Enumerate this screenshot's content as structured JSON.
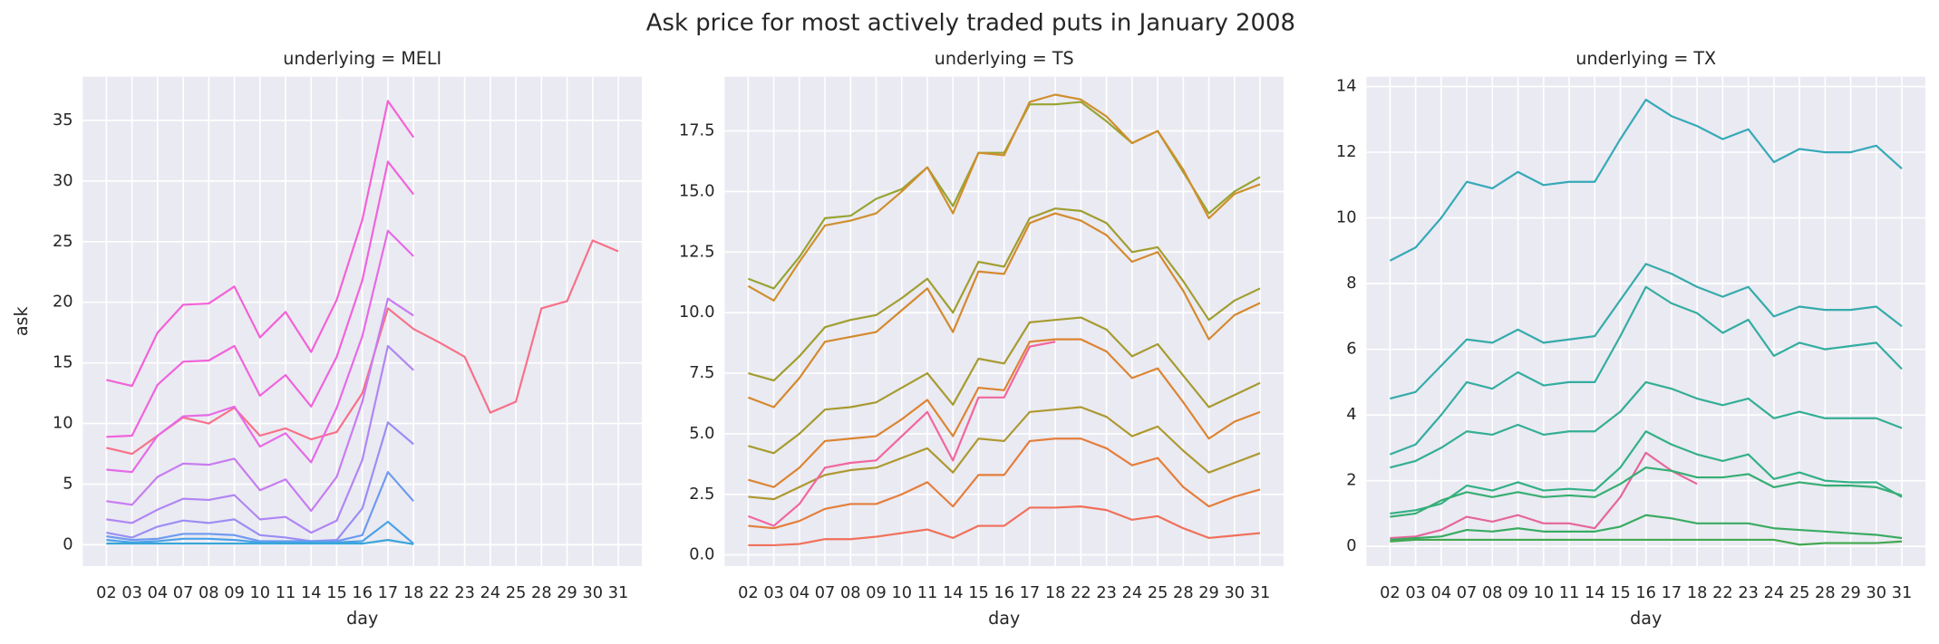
{
  "title": "Ask price for most actively traded puts in January 2008",
  "chart_data": [
    {
      "type": "line",
      "title": "underlying = MELI",
      "xlabel": "day",
      "ylabel": "ask",
      "categories": [
        "02",
        "03",
        "04",
        "07",
        "08",
        "09",
        "10",
        "11",
        "14",
        "15",
        "16",
        "17",
        "18",
        "22",
        "23",
        "24",
        "25",
        "28",
        "29",
        "30",
        "31"
      ],
      "ylim": [
        -1.75,
        38.6
      ],
      "yticks": [
        0,
        5,
        10,
        15,
        20,
        25,
        30,
        35
      ],
      "grid": true,
      "series": [
        {
          "color": "#f77189",
          "values": [
            8.0,
            7.5,
            9.0,
            10.5,
            10.0,
            11.3,
            9.0,
            9.6,
            8.7,
            9.3,
            12.5,
            19.5,
            17.8,
            16.7,
            15.5,
            10.9,
            11.8,
            19.5,
            20.1,
            25.1,
            24.2
          ]
        },
        {
          "color": "#f461d6",
          "values": [
            13.6,
            13.1,
            17.5,
            19.8,
            19.9,
            21.3,
            17.1,
            19.2,
            15.9,
            20.2,
            26.8,
            36.6,
            33.6,
            null,
            null,
            null,
            null,
            null,
            null,
            null,
            null
          ]
        },
        {
          "color": "#f063dc",
          "values": [
            8.9,
            9.0,
            13.2,
            15.1,
            15.2,
            16.4,
            12.3,
            14.0,
            11.4,
            15.5,
            21.8,
            31.6,
            28.9,
            null,
            null,
            null,
            null,
            null,
            null,
            null,
            null
          ]
        },
        {
          "color": "#e66ae6",
          "values": [
            6.2,
            6.0,
            9.0,
            10.6,
            10.7,
            11.4,
            8.1,
            9.2,
            6.8,
            11.3,
            17.2,
            25.9,
            23.8,
            null,
            null,
            null,
            null,
            null,
            null,
            null,
            null
          ]
        },
        {
          "color": "#c77cf0",
          "values": [
            3.6,
            3.3,
            5.6,
            6.7,
            6.6,
            7.1,
            4.5,
            5.4,
            2.8,
            5.6,
            11.8,
            20.3,
            18.9,
            null,
            null,
            null,
            null,
            null,
            null,
            null,
            null
          ]
        },
        {
          "color": "#b086f3",
          "values": [
            2.1,
            1.8,
            2.9,
            3.8,
            3.7,
            4.1,
            2.1,
            2.3,
            1.0,
            2.0,
            7.0,
            16.4,
            14.4,
            null,
            null,
            null,
            null,
            null,
            null,
            null,
            null
          ]
        },
        {
          "color": "#9a8ef4",
          "values": [
            1.0,
            0.6,
            1.5,
            2.0,
            1.8,
            2.1,
            0.8,
            0.6,
            0.3,
            0.4,
            3.0,
            10.1,
            8.3,
            null,
            null,
            null,
            null,
            null,
            null,
            null,
            null
          ]
        },
        {
          "color": "#6e9af0",
          "values": [
            0.7,
            0.4,
            0.5,
            0.9,
            0.9,
            0.8,
            0.3,
            0.3,
            0.3,
            0.3,
            0.8,
            6.0,
            3.6,
            null,
            null,
            null,
            null,
            null,
            null,
            null,
            null
          ]
        },
        {
          "color": "#4aa1e8",
          "values": [
            0.4,
            0.2,
            0.3,
            0.5,
            0.5,
            0.4,
            0.2,
            0.2,
            0.2,
            0.2,
            0.3,
            1.9,
            0.1,
            null,
            null,
            null,
            null,
            null,
            null,
            null,
            null
          ]
        },
        {
          "color": "#3aa4d8",
          "values": [
            0.1,
            0.1,
            0.1,
            0.1,
            0.1,
            0.1,
            0.1,
            0.1,
            0.1,
            0.1,
            0.1,
            0.4,
            0.05,
            null,
            null,
            null,
            null,
            null,
            null,
            null,
            null
          ]
        }
      ]
    },
    {
      "type": "line",
      "title": "underlying = TS",
      "xlabel": "day",
      "categories": [
        "02",
        "03",
        "04",
        "07",
        "08",
        "09",
        "10",
        "11",
        "14",
        "15",
        "16",
        "17",
        "18",
        "22",
        "23",
        "24",
        "25",
        "28",
        "29",
        "30",
        "31"
      ],
      "ylim": [
        -0.46,
        19.74
      ],
      "yticks": [
        {
          "value": 0,
          "label": "0.0"
        },
        2.5,
        {
          "value": 5,
          "label": "5.0"
        },
        7.5,
        {
          "value": 10,
          "label": "10.0"
        },
        12.5,
        {
          "value": 15,
          "label": "15.0"
        },
        17.5
      ],
      "grid": true,
      "series": [
        {
          "color": "#97a431",
          "values": [
            11.4,
            11.0,
            12.3,
            13.9,
            14.0,
            14.7,
            15.1,
            16.0,
            14.4,
            16.6,
            16.6,
            18.6,
            18.6,
            18.7,
            17.9,
            17.0,
            17.5,
            15.8,
            14.1,
            15.0,
            15.6
          ]
        },
        {
          "color": "#cf8f2e",
          "values": [
            11.1,
            10.5,
            12.1,
            13.6,
            13.8,
            14.1,
            15.0,
            16.0,
            14.1,
            16.6,
            16.5,
            18.7,
            19.0,
            18.8,
            18.1,
            17.0,
            17.5,
            15.9,
            13.9,
            14.9,
            15.3
          ]
        },
        {
          "color": "#a09e30",
          "values": [
            7.5,
            7.2,
            8.2,
            9.4,
            9.7,
            9.9,
            10.6,
            11.4,
            10.0,
            12.1,
            11.9,
            13.9,
            14.3,
            14.2,
            13.7,
            12.5,
            12.7,
            11.3,
            9.7,
            10.5,
            11.0
          ]
        },
        {
          "color": "#d4892f",
          "values": [
            6.5,
            6.1,
            7.3,
            8.8,
            9.0,
            9.2,
            10.1,
            11.0,
            9.2,
            11.7,
            11.6,
            13.7,
            14.1,
            13.8,
            13.2,
            12.1,
            12.5,
            10.9,
            8.9,
            9.9,
            10.4
          ]
        },
        {
          "color": "#a69b30",
          "values": [
            4.5,
            4.2,
            5.0,
            6.0,
            6.1,
            6.3,
            6.9,
            7.5,
            6.2,
            8.1,
            7.9,
            9.6,
            9.7,
            9.8,
            9.3,
            8.2,
            8.7,
            7.4,
            6.1,
            6.6,
            7.1
          ]
        },
        {
          "color": "#dc8432",
          "values": [
            3.1,
            2.8,
            3.6,
            4.7,
            4.8,
            4.9,
            5.6,
            6.4,
            4.9,
            6.9,
            6.8,
            8.8,
            8.9,
            8.9,
            8.4,
            7.3,
            7.7,
            6.3,
            4.8,
            5.5,
            5.9
          ]
        },
        {
          "color": "#ad9931",
          "values": [
            2.4,
            2.3,
            2.8,
            3.3,
            3.5,
            3.6,
            4.0,
            4.4,
            3.4,
            4.8,
            4.7,
            5.9,
            6.0,
            6.1,
            5.7,
            4.9,
            5.3,
            4.3,
            3.4,
            3.8,
            4.2
          ]
        },
        {
          "color": "#e47e3c",
          "values": [
            1.2,
            1.1,
            1.4,
            1.9,
            2.1,
            2.1,
            2.5,
            3.0,
            2.0,
            3.3,
            3.3,
            4.7,
            4.8,
            4.8,
            4.4,
            3.7,
            4.0,
            2.8,
            2.0,
            2.4,
            2.7
          ]
        },
        {
          "color": "#f0705a",
          "values": [
            0.4,
            0.4,
            0.45,
            0.65,
            0.65,
            0.75,
            0.9,
            1.05,
            0.7,
            1.2,
            1.2,
            1.95,
            1.95,
            2.0,
            1.85,
            1.45,
            1.6,
            1.1,
            0.7,
            0.8,
            0.9
          ]
        },
        {
          "color": "#f2669e",
          "values": [
            1.6,
            1.2,
            2.1,
            3.6,
            3.8,
            3.9,
            4.9,
            5.9,
            3.9,
            6.5,
            6.5,
            8.6,
            8.8,
            null,
            null,
            null,
            null,
            null,
            null,
            null,
            null
          ]
        }
      ]
    },
    {
      "type": "line",
      "title": "underlying = TX",
      "xlabel": "day",
      "categories": [
        "02",
        "03",
        "04",
        "07",
        "08",
        "09",
        "10",
        "11",
        "14",
        "15",
        "16",
        "17",
        "18",
        "22",
        "23",
        "24",
        "25",
        "28",
        "29",
        "30",
        "31"
      ],
      "ylim": [
        -0.6,
        14.3
      ],
      "yticks": [
        0,
        2,
        4,
        6,
        8,
        10,
        12,
        14
      ],
      "grid": true,
      "series": [
        {
          "color": "#36a9b8",
          "values": [
            8.7,
            9.1,
            10.0,
            11.1,
            10.9,
            11.4,
            11.0,
            11.1,
            11.1,
            12.4,
            13.6,
            13.1,
            12.8,
            12.4,
            12.7,
            11.7,
            12.1,
            12.0,
            12.0,
            12.2,
            11.5
          ]
        },
        {
          "color": "#35abab",
          "values": [
            4.5,
            4.7,
            5.5,
            6.3,
            6.2,
            6.6,
            6.2,
            6.3,
            6.4,
            7.5,
            8.6,
            8.3,
            7.9,
            7.6,
            7.9,
            7.0,
            7.3,
            7.2,
            7.2,
            7.3,
            6.7
          ]
        },
        {
          "color": "#34ada0",
          "values": [
            2.8,
            3.1,
            4.0,
            5.0,
            4.8,
            5.3,
            4.9,
            5.0,
            5.0,
            6.4,
            7.9,
            7.4,
            7.1,
            6.5,
            6.9,
            5.8,
            6.2,
            6.0,
            6.1,
            6.2,
            5.4
          ]
        },
        {
          "color": "#33ae94",
          "values": [
            2.4,
            2.6,
            3.0,
            3.5,
            3.4,
            3.7,
            3.4,
            3.5,
            3.5,
            4.1,
            5.0,
            4.8,
            4.5,
            4.3,
            4.5,
            3.9,
            4.1,
            3.9,
            3.9,
            3.9,
            3.6
          ]
        },
        {
          "color": "#32b086",
          "values": [
            1.0,
            1.1,
            1.3,
            1.85,
            1.7,
            1.95,
            1.7,
            1.75,
            1.7,
            2.4,
            3.5,
            3.1,
            2.8,
            2.6,
            2.8,
            2.05,
            2.25,
            2.0,
            1.95,
            1.95,
            1.5
          ]
        },
        {
          "color": "#e5669b",
          "values": [
            0.25,
            0.3,
            0.5,
            0.9,
            0.75,
            0.95,
            0.7,
            0.7,
            0.55,
            1.5,
            2.85,
            2.3,
            1.9,
            null,
            null,
            null,
            null,
            null,
            null,
            null,
            null
          ]
        },
        {
          "color": "#36ae72",
          "values": [
            0.9,
            1.0,
            1.4,
            1.65,
            1.5,
            1.65,
            1.5,
            1.55,
            1.5,
            1.9,
            2.4,
            2.3,
            2.1,
            2.1,
            2.2,
            1.8,
            1.95,
            1.85,
            1.85,
            1.8,
            1.55
          ]
        },
        {
          "color": "#3aab62",
          "values": [
            0.2,
            0.25,
            0.3,
            0.5,
            0.45,
            0.55,
            0.45,
            0.45,
            0.45,
            0.6,
            0.95,
            0.85,
            0.7,
            0.7,
            0.7,
            0.55,
            0.5,
            0.45,
            0.4,
            0.35,
            0.25
          ]
        },
        {
          "color": "#42a84f",
          "values": [
            0.15,
            0.2,
            0.2,
            0.2,
            0.2,
            0.2,
            0.2,
            0.2,
            0.2,
            0.2,
            0.2,
            0.2,
            0.2,
            0.2,
            0.2,
            0.2,
            0.05,
            0.1,
            0.1,
            0.1,
            0.15
          ]
        }
      ]
    }
  ]
}
